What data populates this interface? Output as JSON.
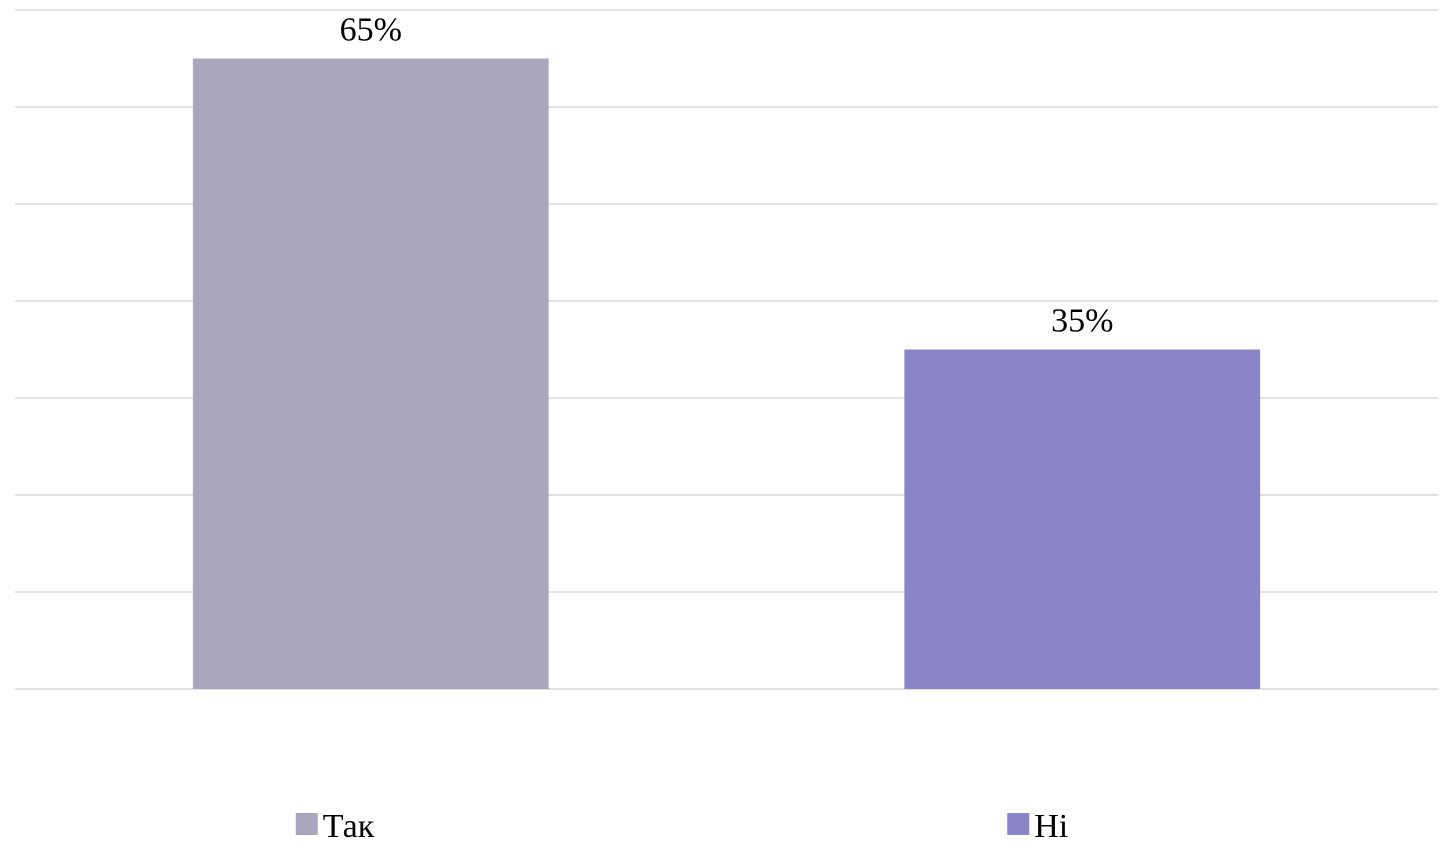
{
  "chart_data": {
    "type": "bar",
    "categories": [
      "Так",
      "Ні"
    ],
    "values": [
      65,
      35
    ],
    "value_labels": [
      "65%",
      "35%"
    ],
    "colors": [
      "#aaa7bc",
      "#8a86c5"
    ],
    "ylim": [
      0,
      70
    ],
    "grid": true,
    "gridline_step": 10,
    "legend": {
      "placement": "bottom",
      "entries": [
        "Так",
        "Ні"
      ]
    },
    "grid_color": "#d9d9d9"
  }
}
